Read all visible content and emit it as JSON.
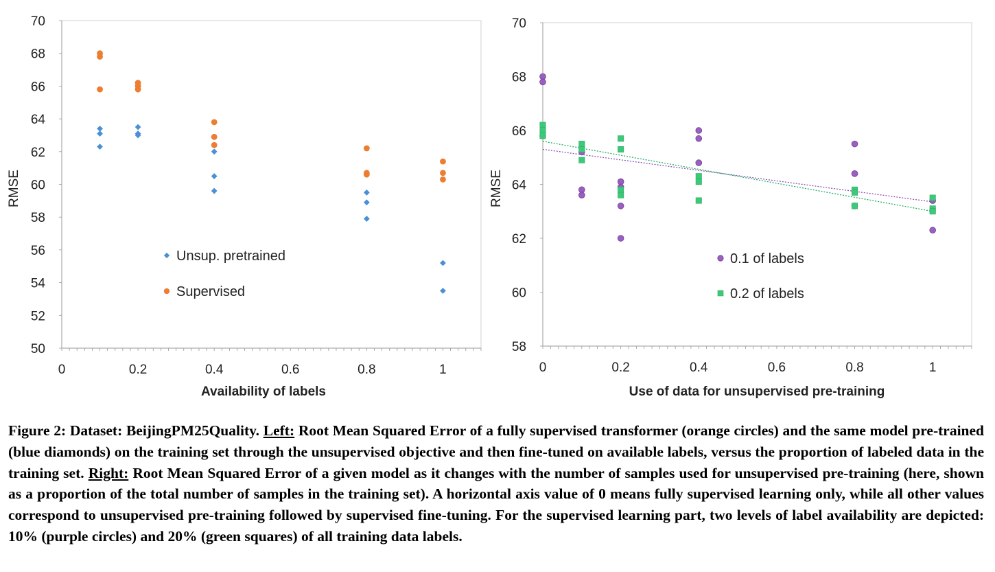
{
  "chart_data": [
    {
      "type": "scatter",
      "title": "",
      "xlabel": "Availability of labels",
      "ylabel": "RMSE",
      "xlim": [
        0,
        1.1
      ],
      "ylim": [
        50,
        70
      ],
      "xticks": [
        0,
        0.2,
        0.4,
        0.6,
        0.8,
        1
      ],
      "xtick_labels": [
        "0",
        "0.2",
        "0.4",
        "0.6",
        "0.8",
        "1"
      ],
      "yticks": [
        50,
        52,
        54,
        56,
        58,
        60,
        62,
        64,
        66,
        68,
        70
      ],
      "ytick_labels": [
        "50",
        "52",
        "54",
        "56",
        "58",
        "60",
        "62",
        "64",
        "66",
        "68",
        "70"
      ],
      "grid": false,
      "legend_position": "center-left",
      "series": [
        {
          "name": "Unsup. pretrained",
          "marker": "diamond",
          "color": "#4a90d6",
          "points": [
            [
              0.1,
              63.4
            ],
            [
              0.1,
              63.1
            ],
            [
              0.1,
              62.3
            ],
            [
              0.2,
              63.5
            ],
            [
              0.2,
              63.1
            ],
            [
              0.2,
              63.0
            ],
            [
              0.4,
              62.0
            ],
            [
              0.4,
              60.5
            ],
            [
              0.4,
              59.6
            ],
            [
              0.8,
              59.5
            ],
            [
              0.8,
              58.9
            ],
            [
              0.8,
              57.9
            ],
            [
              1.0,
              55.2
            ],
            [
              1.0,
              53.5
            ]
          ]
        },
        {
          "name": "Supervised",
          "marker": "circle",
          "color": "#ed7d31",
          "points": [
            [
              0.1,
              68.0
            ],
            [
              0.1,
              67.8
            ],
            [
              0.1,
              65.8
            ],
            [
              0.2,
              66.2
            ],
            [
              0.2,
              66.0
            ],
            [
              0.2,
              65.8
            ],
            [
              0.4,
              63.8
            ],
            [
              0.4,
              62.9
            ],
            [
              0.4,
              62.4
            ],
            [
              0.8,
              62.2
            ],
            [
              0.8,
              60.7
            ],
            [
              0.8,
              60.6
            ],
            [
              1.0,
              61.4
            ],
            [
              1.0,
              60.7
            ],
            [
              1.0,
              60.3
            ]
          ]
        }
      ]
    },
    {
      "type": "scatter",
      "title": "",
      "xlabel": "Use of data for unsupervised pre-training",
      "ylabel": "RMSE",
      "xlim": [
        0,
        1.1
      ],
      "ylim": [
        58,
        70
      ],
      "xticks": [
        0,
        0.2,
        0.4,
        0.6,
        0.8,
        1
      ],
      "xtick_labels": [
        "0",
        "0.2",
        "0.4",
        "0.6",
        "0.8",
        "1"
      ],
      "yticks": [
        58,
        60,
        62,
        64,
        66,
        68,
        70
      ],
      "ytick_labels": [
        "58",
        "60",
        "62",
        "64",
        "66",
        "68",
        "70"
      ],
      "grid": false,
      "legend_position": "center",
      "series": [
        {
          "name": "0.1 of labels",
          "marker": "circle",
          "color": "#9a5fc0",
          "points": [
            [
              0,
              68.0
            ],
            [
              0,
              67.8
            ],
            [
              0,
              65.8
            ],
            [
              0.1,
              65.2
            ],
            [
              0.1,
              63.8
            ],
            [
              0.1,
              63.6
            ],
            [
              0.2,
              64.1
            ],
            [
              0.2,
              63.9
            ],
            [
              0.2,
              63.2
            ],
            [
              0.2,
              62.0
            ],
            [
              0.4,
              66.0
            ],
            [
              0.4,
              65.7
            ],
            [
              0.4,
              64.8
            ],
            [
              0.8,
              65.5
            ],
            [
              0.8,
              64.4
            ],
            [
              0.8,
              63.2
            ],
            [
              1.0,
              63.4
            ],
            [
              1.0,
              62.3
            ]
          ],
          "trendline": {
            "x": [
              0,
              1
            ],
            "y": [
              65.3,
              63.35
            ]
          }
        },
        {
          "name": "0.2 of labels",
          "marker": "square",
          "color": "#3dc97a",
          "points": [
            [
              0,
              66.2
            ],
            [
              0,
              66.0
            ],
            [
              0,
              65.8
            ],
            [
              0.1,
              65.5
            ],
            [
              0.1,
              65.3
            ],
            [
              0.1,
              64.9
            ],
            [
              0.2,
              65.7
            ],
            [
              0.2,
              65.3
            ],
            [
              0.2,
              63.8
            ],
            [
              0.2,
              63.6
            ],
            [
              0.4,
              64.3
            ],
            [
              0.4,
              64.1
            ],
            [
              0.4,
              63.4
            ],
            [
              0.8,
              63.8
            ],
            [
              0.8,
              63.7
            ],
            [
              0.8,
              63.2
            ],
            [
              1.0,
              63.5
            ],
            [
              1.0,
              63.1
            ],
            [
              1.0,
              63.0
            ]
          ],
          "trendline": {
            "x": [
              0,
              1
            ],
            "y": [
              65.6,
              63.0
            ]
          }
        }
      ]
    }
  ],
  "caption": {
    "part1": "Figure 2: Dataset: BeijingPM25Quality. ",
    "left_label": "Left:",
    "part2": " Root Mean Squared Error of a fully supervised transformer (orange circles) and the same model pre-trained (blue diamonds) on the training set through the unsupervised objective and then fine-tuned on available labels, versus the proportion of labeled data in the training set. ",
    "right_label": "Right:",
    "part3": " Root Mean Squared Error of a given model as it changes with the number of samples used for unsupervised pre-training (here, shown as a proportion of the total number of samples in the training set). A horizontal axis value of 0 means fully supervised learning only, while all other values correspond to unsupervised pre-training followed by supervised fine-tuning. For the supervised learning part, two levels of label availability are depicted: 10% (purple circles) and 20% (green squares) of all training data labels."
  }
}
